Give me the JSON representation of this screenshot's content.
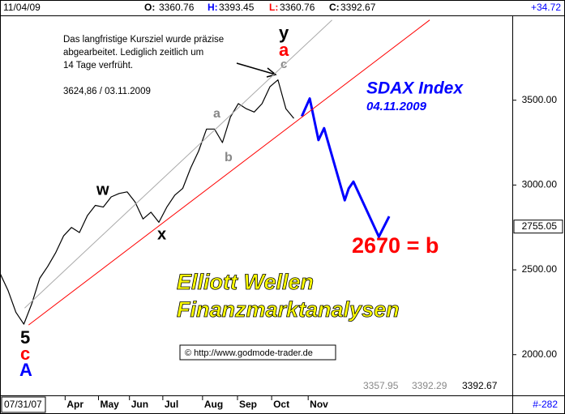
{
  "chart_data": {
    "type": "line",
    "header": {
      "date": "11/04/09",
      "open_label": "O:",
      "open": "3360.76",
      "high_label": "H:",
      "high": "3393.45",
      "low_label": "L:",
      "low": "3360.76",
      "close_label": "C:",
      "close": "3392.67",
      "change": "+34.72"
    },
    "footer": {
      "start": "07/31/07",
      "bars": "#-282",
      "readouts": [
        "3357.95",
        "3392.29",
        "3392.67"
      ]
    },
    "title": "SDAX Index",
    "subtitle": "04.11.2009",
    "note_lines": [
      "Das langfristige Kursziel wurde präzise",
      "abgearbeitet. Lediglich zeitlich um",
      "14 Tage verfrüht."
    ],
    "note_value": "3624,86 / 03.11.2009",
    "target": "2670 = b",
    "brand": [
      "Elliott Wellen",
      "Finanzmarktanalysen"
    ],
    "url": "© http://www.godmode-trader.de",
    "waves": [
      {
        "text": "y",
        "color": "#000000"
      },
      {
        "text": "a",
        "color": "#ff0000"
      },
      {
        "text": "c",
        "color": "#888888"
      },
      {
        "text": "a",
        "color": "#888888"
      },
      {
        "text": "b",
        "color": "#888888"
      },
      {
        "text": "w",
        "color": "#000000"
      },
      {
        "text": "x",
        "color": "#000000"
      },
      {
        "text": "5",
        "color": "#000000"
      },
      {
        "text": "c",
        "color": "#ff0000"
      },
      {
        "text": "A",
        "color": "#0000ff"
      }
    ],
    "price_marker": {
      "value": 2755.05,
      "label": "2755.05"
    },
    "ylim": [
      1760,
      4000
    ],
    "yticks": [
      {
        "value": 2000,
        "label": "2000.00"
      },
      {
        "value": 2500,
        "label": "2500.00"
      },
      {
        "value": 3000,
        "label": "3000.00"
      },
      {
        "value": 3500,
        "label": "3500.00"
      }
    ],
    "xlim": [
      0,
      64.5
    ],
    "xticks": [
      {
        "value": 8.2,
        "label": "Apr"
      },
      {
        "value": 12.4,
        "label": "May"
      },
      {
        "value": 16.3,
        "label": "Jun"
      },
      {
        "value": 20.5,
        "label": "Jul"
      },
      {
        "value": 25.5,
        "label": "Aug"
      },
      {
        "value": 29.9,
        "label": "Sep"
      },
      {
        "value": 34.2,
        "label": "Oct"
      },
      {
        "value": 38.8,
        "label": "Nov"
      }
    ],
    "series": [
      {
        "color": "#000000",
        "width": 1.2,
        "x": [
          0,
          1,
          2,
          3,
          4,
          5,
          6,
          7,
          8,
          9,
          10,
          11,
          12,
          13,
          14,
          15,
          16,
          17,
          18,
          19,
          20,
          21,
          22,
          23,
          24,
          25,
          26,
          27,
          28,
          29,
          30,
          31,
          32,
          33,
          34,
          35,
          36,
          37
        ],
        "values": [
          2480,
          2380,
          2250,
          2180,
          2300,
          2450,
          2520,
          2600,
          2700,
          2750,
          2720,
          2820,
          2880,
          2870,
          2930,
          2950,
          2960,
          2900,
          2800,
          2840,
          2780,
          2870,
          2940,
          2980,
          3100,
          3200,
          3330,
          3330,
          3250,
          3400,
          3480,
          3450,
          3430,
          3480,
          3580,
          3620,
          3450,
          3393
        ]
      },
      {
        "color": "#0000ff",
        "width": 3,
        "x": [
          38.0,
          39.0,
          40.1,
          40.8,
          43.4,
          43.9,
          44.5,
          47.7,
          49.0
        ],
        "values": [
          3405,
          3510,
          3265,
          3335,
          2910,
          2980,
          3020,
          2695,
          2815
        ]
      },
      {
        "color": "#ff0000",
        "width": 1,
        "x": [
          3.6,
          54.1
        ],
        "values": [
          2175,
          3973
        ]
      },
      {
        "color": "#aaaaaa",
        "width": 1,
        "x": [
          3.1,
          41.8
        ],
        "values": [
          2275,
          3973
        ]
      }
    ]
  }
}
